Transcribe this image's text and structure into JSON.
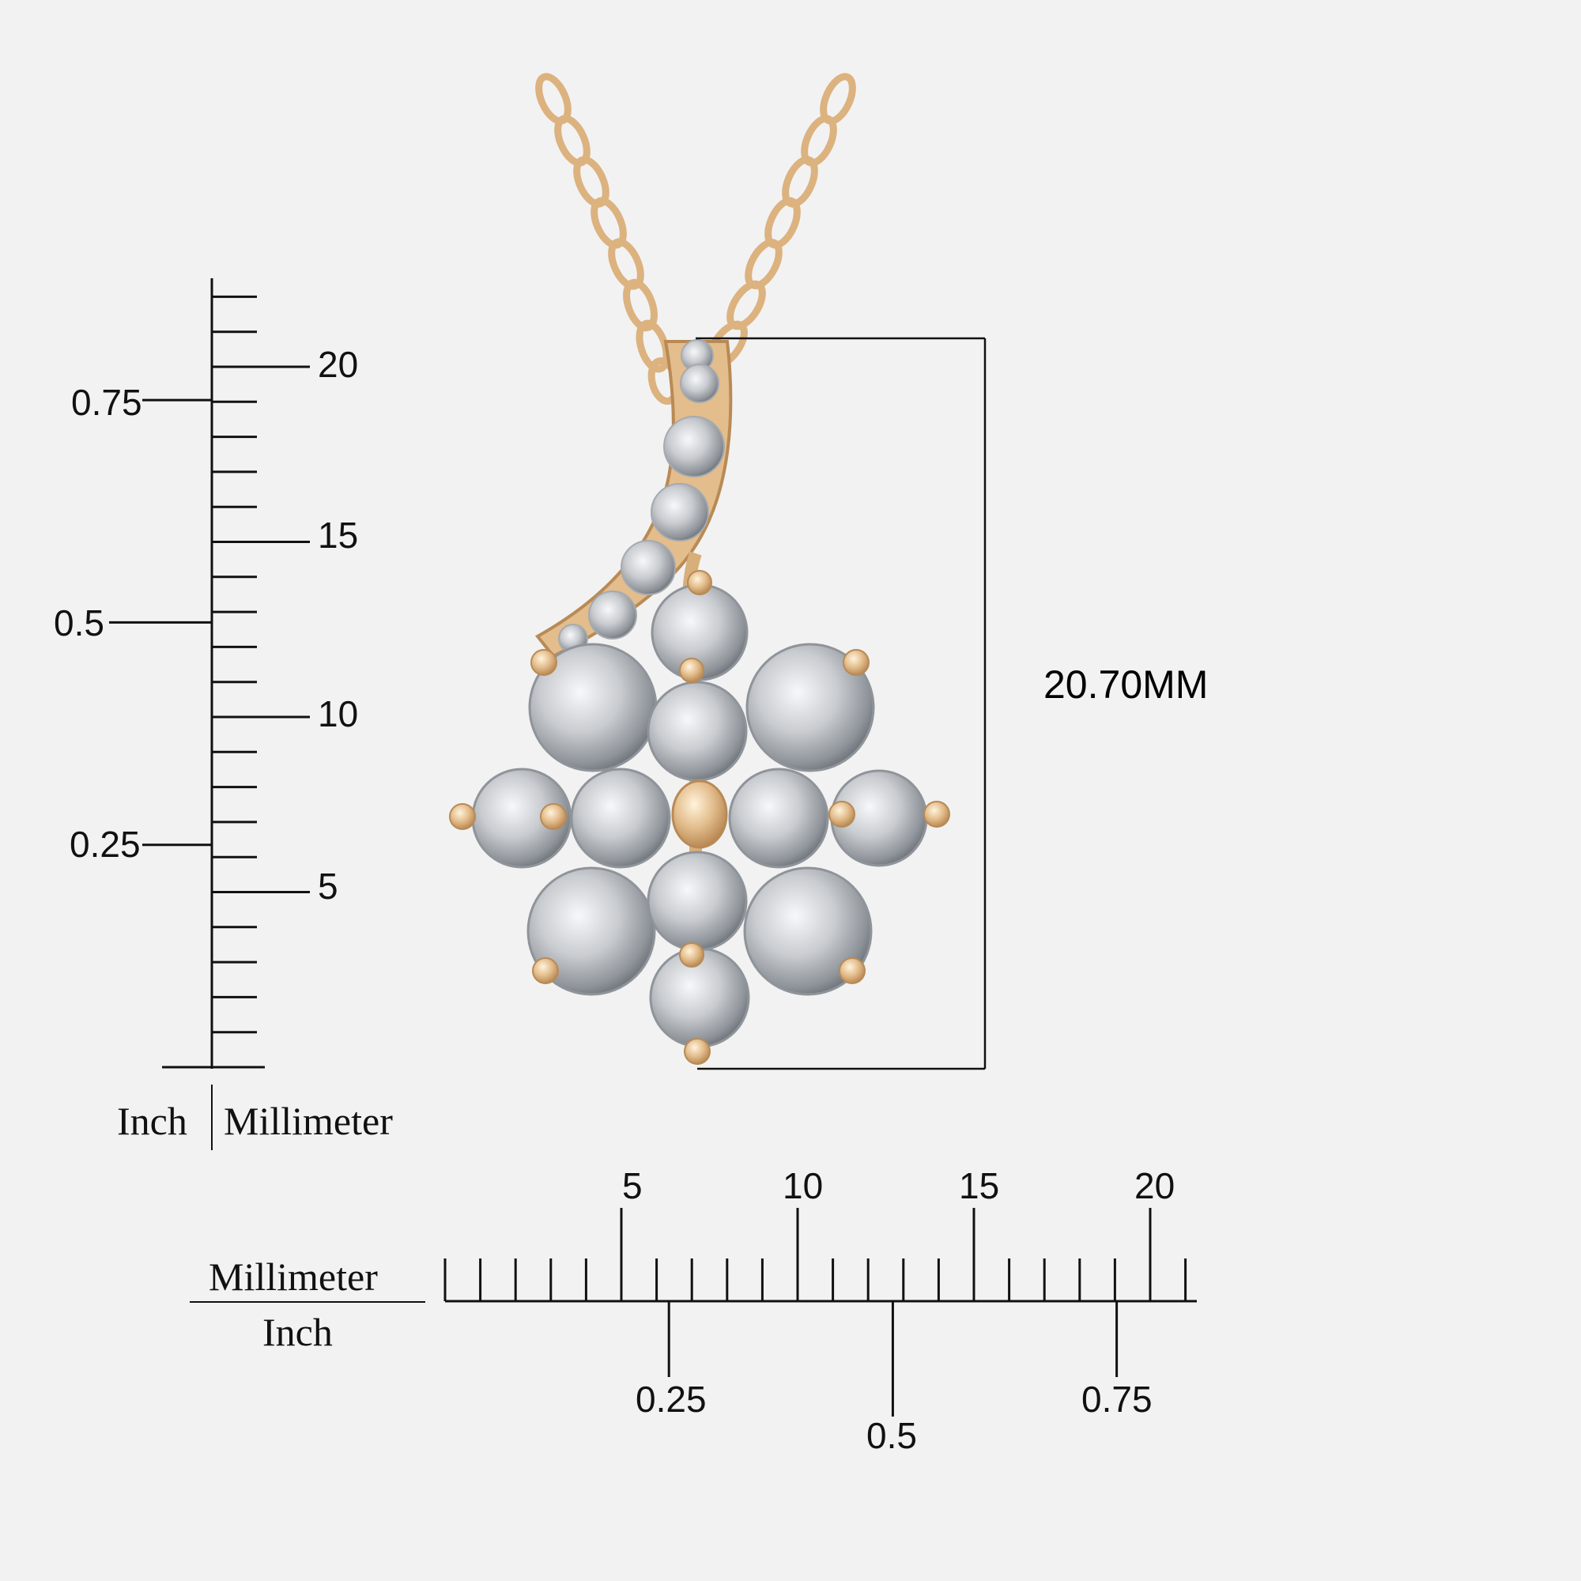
{
  "measurement": {
    "length_label": "20.70MM",
    "length_mm": 20.7
  },
  "vertical_ruler": {
    "mm_labels": [
      "20",
      "15",
      "10",
      "5"
    ],
    "inch_labels": [
      "0.75",
      "0.5",
      "0.25"
    ],
    "unit_left": "Inch",
    "unit_right": "Millimeter"
  },
  "horizontal_ruler": {
    "mm_labels": [
      "5",
      "10",
      "15",
      "20"
    ],
    "inch_labels": [
      "0.25",
      "0.5",
      "0.75"
    ],
    "unit_top": "Millimeter",
    "unit_bottom": "Inch"
  },
  "colors": {
    "background": "#f2f2f2",
    "gold": "#e3bd8c",
    "gold_dark": "#b98a55",
    "diamond": "#c9ccd0",
    "ink": "#111111"
  }
}
